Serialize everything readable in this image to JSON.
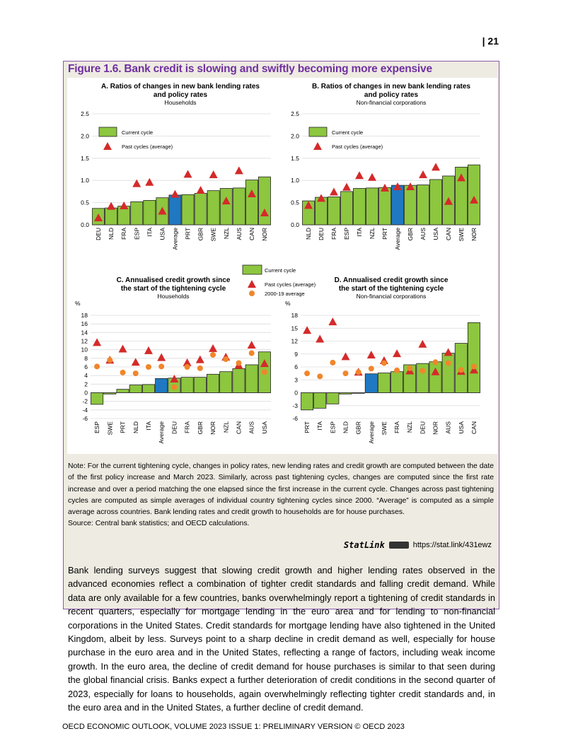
{
  "page_number": "| 21",
  "figure_title": "Figure 1.6. Bank credit is slowing and swiftly becoming more expensive",
  "colors": {
    "current": "#8dc63f",
    "average_bar": "#1f78c1",
    "past": "#d42a2a",
    "avg2000": "#f0862a",
    "title": "#7030a0"
  },
  "chart_data": [
    {
      "type": "bar",
      "title": "A. Ratios of changes in new bank lending rates and policy rates",
      "title_lines": [
        "A. Ratios of changes in new bank lending rates",
        "and policy rates"
      ],
      "subtitle": "Households",
      "ylim": [
        0,
        2.5
      ],
      "yticks": [
        "0.0",
        "0.5",
        "1.0",
        "1.5",
        "2.0",
        "2.5"
      ],
      "grid": true,
      "legend": [
        "Current cycle",
        "Past cycles (average)"
      ],
      "legend_position": "top-left",
      "categories": [
        "DEU",
        "NLD",
        "FRA",
        "ESP",
        "ITA",
        "USA",
        "Average",
        "PRT",
        "GBR",
        "SWE",
        "NZL",
        "AUS",
        "CAN",
        "NOR"
      ],
      "series": [
        {
          "name": "Current cycle",
          "mark": "bar",
          "values": [
            0.37,
            0.38,
            0.42,
            0.52,
            0.55,
            0.61,
            0.67,
            0.68,
            0.71,
            0.77,
            0.82,
            0.83,
            1.01,
            1.08
          ]
        },
        {
          "name": "Past cycles (average)",
          "mark": "triangle",
          "values": [
            0.16,
            0.42,
            0.43,
            0.93,
            0.96,
            0.31,
            0.69,
            1.14,
            0.78,
            1.13,
            0.54,
            1.22,
            0.7,
            0.27
          ]
        }
      ]
    },
    {
      "type": "bar",
      "title": "B. Ratios of changes in new bank lending rates and policy rates",
      "title_lines": [
        "B. Ratios of changes in new bank lending rates",
        "and policy rates"
      ],
      "subtitle": "Non-financial corporations",
      "ylim": [
        0,
        2.5
      ],
      "yticks": [
        "0.0",
        "0.5",
        "1.0",
        "1.5",
        "2.0",
        "2.5"
      ],
      "grid": true,
      "legend": [
        "Current cycle",
        "Past cycles (average)"
      ],
      "legend_position": "top-left",
      "categories": [
        "NLD",
        "DEU",
        "FRA",
        "ESP",
        "ITA",
        "NZL",
        "PRT",
        "Average",
        "GBR",
        "AUS",
        "USA",
        "CAN",
        "SWE",
        "NOR"
      ],
      "series": [
        {
          "name": "Current cycle",
          "mark": "bar",
          "values": [
            0.54,
            0.62,
            0.63,
            0.75,
            0.82,
            0.83,
            0.84,
            0.89,
            0.89,
            0.9,
            1.02,
            1.1,
            1.3,
            1.35
          ]
        },
        {
          "name": "Past cycles (average)",
          "mark": "triangle",
          "values": [
            0.44,
            0.6,
            0.74,
            0.85,
            1.11,
            1.07,
            0.83,
            0.86,
            0.86,
            1.13,
            1.3,
            0.53,
            1.06,
            0.56
          ]
        }
      ]
    },
    {
      "type": "bar",
      "title": "C. Annualised credit growth since the start of the tightening cycle",
      "title_lines": [
        "C. Annualised credit growth since",
        "the start of the tightening cycle"
      ],
      "subtitle": "Households",
      "ylabel": "%",
      "ylim": [
        -6,
        18
      ],
      "yticks": [
        "-6",
        "-4",
        "-2",
        "0",
        "2",
        "4",
        "6",
        "8",
        "10",
        "12",
        "14",
        "16",
        "18"
      ],
      "grid": true,
      "categories": [
        "ESP",
        "SWE",
        "PRT",
        "NLD",
        "ITA",
        "Average",
        "DEU",
        "FRA",
        "GBR",
        "NOR",
        "NZL",
        "CAN",
        "AUS",
        "USA"
      ],
      "series": [
        {
          "name": "Current cycle",
          "mark": "bar",
          "values": [
            -2.7,
            -0.3,
            0.8,
            1.8,
            1.9,
            3.3,
            3.4,
            3.6,
            3.6,
            4.3,
            4.9,
            5.6,
            6.5,
            9.5
          ]
        },
        {
          "name": "Past cycles (average)",
          "mark": "triangle",
          "values": [
            11.7,
            7.6,
            10.2,
            7.1,
            9.8,
            8.2,
            3.2,
            7.0,
            7.7,
            10.3,
            8.3,
            6.4,
            11.1,
            6.8
          ]
        },
        {
          "name": "2000-19 average",
          "mark": "circle",
          "values": [
            6.1,
            7.6,
            4.7,
            4.5,
            6.0,
            6.1,
            1.3,
            6.0,
            5.7,
            8.8,
            7.8,
            6.9,
            9.2,
            4.8
          ]
        }
      ]
    },
    {
      "type": "bar",
      "title": "D. Annualised credit growth since the start of the tightening cycle",
      "title_lines": [
        "D. Annualised credit growth since",
        "the start of the tightening cycle"
      ],
      "subtitle": "Non-financial corporations",
      "ylabel": "%",
      "ylim": [
        -6,
        18
      ],
      "yticks": [
        "-6",
        "-3",
        "0",
        "3",
        "6",
        "9",
        "12",
        "15",
        "18"
      ],
      "grid": true,
      "categories": [
        "PRT",
        "ITA",
        "ESP",
        "NLD",
        "GBR",
        "Average",
        "SWE",
        "FRA",
        "NZL",
        "DEU",
        "NOR",
        "AUS",
        "USA",
        "CAN"
      ],
      "series": [
        {
          "name": "Current cycle",
          "mark": "bar",
          "values": [
            -4.0,
            -3.6,
            -2.6,
            -0.3,
            0.0,
            4.4,
            4.6,
            4.9,
            6.5,
            6.8,
            7.2,
            9.2,
            11.5,
            16.3
          ]
        },
        {
          "name": "Past cycles (average)",
          "mark": "triangle",
          "values": [
            14.5,
            12.5,
            16.5,
            8.4,
            4.8,
            8.8,
            7.5,
            9.1,
            5.1,
            11.3,
            4.9,
            9.4,
            5.0,
            5.3
          ]
        },
        {
          "name": "2000-19 average",
          "mark": "circle",
          "values": [
            4.5,
            3.8,
            7.0,
            4.5,
            4.8,
            5.6,
            6.9,
            5.2,
            5.7,
            5.1,
            7.1,
            6.9,
            5.3,
            6.1
          ]
        }
      ]
    }
  ],
  "shared_legend_cd": [
    "Current cycle",
    "Past cycles (average)",
    "2000-19 average"
  ],
  "note": "Note: For the current tightening cycle, changes in policy rates, new lending rates and credit growth are computed between the date of the first policy increase and March 2023. Similarly, across past tightening cycles, changes are computed since the first rate increase and over a period matching the one elapsed since the first increase in the current cycle. Changes across past tightening cycles are computed as simple averages of individual country tightening cycles since 2000. “Average” is computed as a simple average across countries. Bank lending rates and credit growth to households are for house purchases.",
  "source": "Source: Central bank statistics; and OECD calculations.",
  "statlink": {
    "label": "StatLink",
    "url": "https://stat.link/431ewz"
  },
  "body": "Bank lending surveys suggest that slowing credit growth and higher lending rates observed in the advanced economies reflect a combination of tighter credit standards and falling credit demand. While data are only available for a few countries, banks overwhelmingly report a tightening of credit standards in recent quarters, especially for mortgage lending in the euro area and for lending to non-financial corporations in the United States. Credit standards for mortgage lending have also tightened in the United Kingdom, albeit by less. Surveys point to a sharp decline in credit demand as well, especially for house purchase in the euro area and in the United States, reflecting a range of factors, including weak income growth. In the euro area, the decline of credit demand for house purchases is similar to that seen during the global financial crisis. Banks expect a further deterioration of credit conditions in the second quarter of 2023, especially for loans to households, again overwhelmingly reflecting tighter credit standards and, in the euro area and in the United States, a further decline of credit demand.",
  "footer": "OECD ECONOMIC OUTLOOK, VOLUME 2023 ISSUE 1: PRELIMINARY VERSION © OECD 2023"
}
